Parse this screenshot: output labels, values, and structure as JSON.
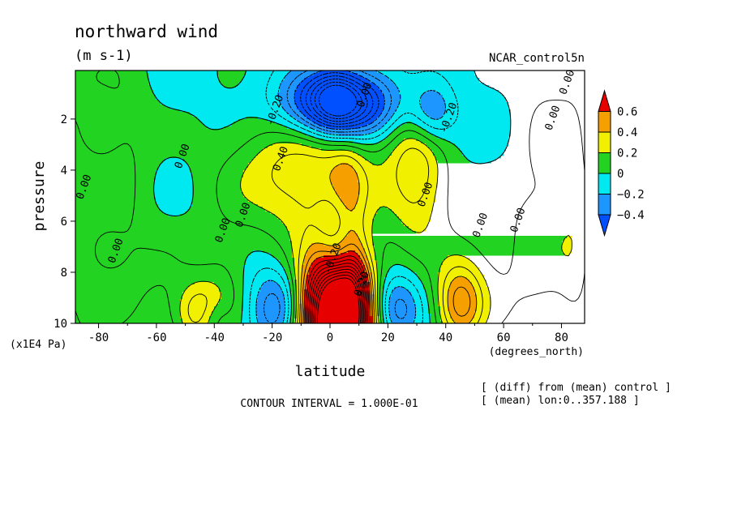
{
  "chart_data": {
    "type": "heatmap",
    "title": "northward wind",
    "units": "(m s-1)",
    "dataset": "NCAR_control5n",
    "xlabel": "latitude",
    "xunits": "(degrees_north)",
    "ylabel": "pressure",
    "yunits": "(x1E4 Pa)",
    "x_ticks": [
      -80,
      -60,
      -40,
      -20,
      0,
      20,
      40,
      60,
      80
    ],
    "x_tick_labels": [
      "-80",
      "-60",
      "-40",
      "-20",
      "0",
      "20",
      "40",
      "60",
      "80"
    ],
    "y_ticks": [
      2,
      4,
      6,
      8,
      10
    ],
    "y_tick_labels": [
      "2",
      "4",
      "6",
      "8",
      "10"
    ],
    "xlim": [
      -88,
      88
    ],
    "ylim": [
      10,
      0.1
    ],
    "contour_interval_text": "CONTOUR INTERVAL = 1.000E-01",
    "notes": [
      "[ (diff) from (mean) control ]",
      "[ (mean) lon:0..357.188 ]"
    ],
    "colorbar": {
      "levels": [
        0.6,
        0.4,
        0.2,
        0,
        -0.2,
        -0.4
      ],
      "labels": [
        "0.6",
        "0.4",
        "0.2",
        "0",
        "−0.2",
        "−0.4"
      ],
      "colors": [
        "#e60000",
        "#f5a000",
        "#f0f000",
        "#22d322",
        "#00e8f0",
        "#1e96ff",
        "#0050ff"
      ]
    },
    "contour_labels": [
      {
        "text": "0.00",
        "lat": -50,
        "p": 3.5
      },
      {
        "text": "0.00",
        "lat": -84,
        "p": 4.7
      },
      {
        "text": "0.00",
        "lat": -73,
        "p": 7.2
      },
      {
        "text": "0.00",
        "lat": -36,
        "p": 6.4
      },
      {
        "text": "0.00",
        "lat": -29,
        "p": 5.8
      },
      {
        "text": "0.00",
        "lat": 13,
        "p": 1.1
      },
      {
        "text": "0.00",
        "lat": 34,
        "p": 5.0
      },
      {
        "text": "0.00",
        "lat": 53,
        "p": 6.2
      },
      {
        "text": "0.00",
        "lat": 66,
        "p": 6.0
      },
      {
        "text": "0.00",
        "lat": 78,
        "p": 2.0
      },
      {
        "text": "0.00",
        "lat": 83,
        "p": 0.6
      },
      {
        "text": "-0.20",
        "lat": -18,
        "p": 1.7
      },
      {
        "text": "-0.20",
        "lat": 42,
        "p": 2.0
      },
      {
        "text": "-0.20",
        "lat": 2,
        "p": 7.5
      },
      {
        "text": "0.40",
        "lat": -16,
        "p": 3.6
      },
      {
        "text": "0.20",
        "lat": 12,
        "p": 8.5
      }
    ],
    "field_blobs": [
      {
        "lat": -87,
        "p": 5.0,
        "rlat": 13,
        "rp": 7.5,
        "v": 0.15
      },
      {
        "lat": -70,
        "p": 3.2,
        "rlat": 9,
        "rp": 4.2,
        "v": 0.12
      },
      {
        "lat": 75,
        "p": 4.0,
        "rlat": 12,
        "rp": 6.0,
        "v": 0.15
      },
      {
        "lat": 85,
        "p": 6.0,
        "rlat": 6,
        "rp": 5.0,
        "v": 0.12
      },
      {
        "lat": -62,
        "p": 8.6,
        "rlat": 22,
        "rp": 2.4,
        "v": 0.12
      },
      {
        "lat": -36,
        "p": 8.6,
        "rlat": 8,
        "rp": 2.4,
        "v": 0.12
      },
      {
        "lat": 55,
        "p": 8.0,
        "rlat": 25,
        "rp": 3.0,
        "v": 0.12
      },
      {
        "lat": -8,
        "p": 4.2,
        "rlat": 26,
        "rp": 2.4,
        "v": 0.42
      },
      {
        "lat": 6,
        "p": 4.8,
        "rlat": 6,
        "rp": 2.0,
        "v": 0.2
      },
      {
        "lat": 30,
        "p": 4.0,
        "rlat": 10,
        "rp": 2.6,
        "v": 0.38
      },
      {
        "lat": 2,
        "p": 9.8,
        "rlat": 12,
        "rp": 2.6,
        "v": 2.0
      },
      {
        "lat": 8,
        "p": 8.6,
        "rlat": 5,
        "rp": 2.0,
        "v": 0.3
      },
      {
        "lat": -45,
        "p": 9.6,
        "rlat": 8,
        "rp": 1.2,
        "v": 0.38
      },
      {
        "lat": 45,
        "p": 9.2,
        "rlat": 8,
        "rp": 1.6,
        "v": 0.5
      },
      {
        "lat": 3,
        "p": 1.4,
        "rlat": 18,
        "rp": 1.3,
        "v": -0.95
      },
      {
        "lat": 2,
        "p": 1.2,
        "rlat": 7,
        "rp": 1.0,
        "v": -0.3
      },
      {
        "lat": 35,
        "p": 1.8,
        "rlat": 8,
        "rp": 1.2,
        "v": -0.35
      },
      {
        "lat": 2,
        "p": 6.2,
        "rlat": 7,
        "rp": 1.4,
        "v": -0.25
      },
      {
        "lat": 3,
        "p": 7.4,
        "rlat": 7,
        "rp": 0.8,
        "v": -0.2
      },
      {
        "lat": -18,
        "p": 9.4,
        "rlat": 10,
        "rp": 1.6,
        "v": -0.4
      },
      {
        "lat": 22,
        "p": 9.4,
        "rlat": 9,
        "rp": 1.4,
        "v": -0.4
      },
      {
        "lat": -40,
        "p": 9.8,
        "rlat": 6,
        "rp": 0.8,
        "v": -0.2
      }
    ]
  }
}
